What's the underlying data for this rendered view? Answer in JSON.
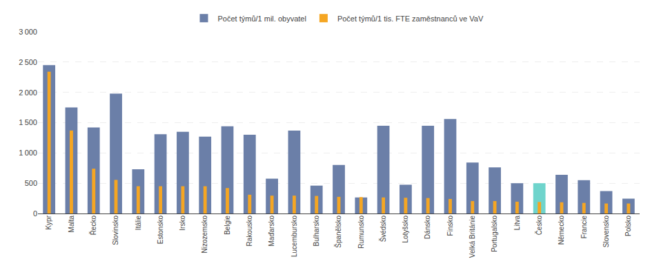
{
  "chart_data": {
    "type": "bar",
    "categories": [
      "Kypr",
      "Malta",
      "Řecko",
      "Slovinsko",
      "Itálie",
      "Estonsko",
      "Irsko",
      "Nizozemsko",
      "Belgie",
      "Rakousko",
      "Maďarsko",
      "Lucembursko",
      "Bulharsko",
      "Španělsko",
      "Rumunsko",
      "Švédsko",
      "Lotyšsko",
      "Dánsko",
      "Finsko",
      "Velká Británie",
      "Portugalsko",
      "Litva",
      "Česko",
      "Německo",
      "Francie",
      "Slovensko",
      "Polsko"
    ],
    "series": [
      {
        "name": "Počet týmů/1 mil. obyvatel",
        "color": "#6b7fa8",
        "colors": [
          "#6b7fa8",
          "#6b7fa8",
          "#6b7fa8",
          "#6b7fa8",
          "#6b7fa8",
          "#6b7fa8",
          "#6b7fa8",
          "#6b7fa8",
          "#6b7fa8",
          "#6b7fa8",
          "#6b7fa8",
          "#6b7fa8",
          "#6b7fa8",
          "#6b7fa8",
          "#6b7fa8",
          "#6b7fa8",
          "#6b7fa8",
          "#6b7fa8",
          "#6b7fa8",
          "#6b7fa8",
          "#6b7fa8",
          "#6b7fa8",
          "#6fd4cc",
          "#6b7fa8",
          "#6b7fa8",
          "#6b7fa8",
          "#6b7fa8"
        ],
        "values": [
          2450,
          1750,
          1420,
          1980,
          730,
          1310,
          1350,
          1270,
          1440,
          1300,
          575,
          1370,
          460,
          800,
          265,
          1450,
          475,
          1450,
          1560,
          840,
          760,
          500,
          500,
          640,
          550,
          370,
          245
        ]
      },
      {
        "name": "Počet týmů/1 tis. FTE zaměstnanců ve VaV",
        "color": "#f5a623",
        "values": [
          2340,
          1370,
          740,
          555,
          450,
          450,
          450,
          450,
          420,
          310,
          295,
          295,
          290,
          275,
          270,
          265,
          260,
          255,
          240,
          205,
          205,
          195,
          190,
          185,
          175,
          165,
          165
        ]
      }
    ],
    "ylim": [
      0,
      3000
    ],
    "yticks": [
      0,
      500,
      {
        "value": 1000,
        "label": "1 000"
      },
      {
        "value": 1500,
        "label": "1 500"
      },
      {
        "value": 2000,
        "label": "2 000"
      },
      {
        "value": 2500,
        "label": "2 500"
      },
      {
        "value": 3000,
        "label": "3 000"
      }
    ],
    "grid": true,
    "legend": "top"
  }
}
